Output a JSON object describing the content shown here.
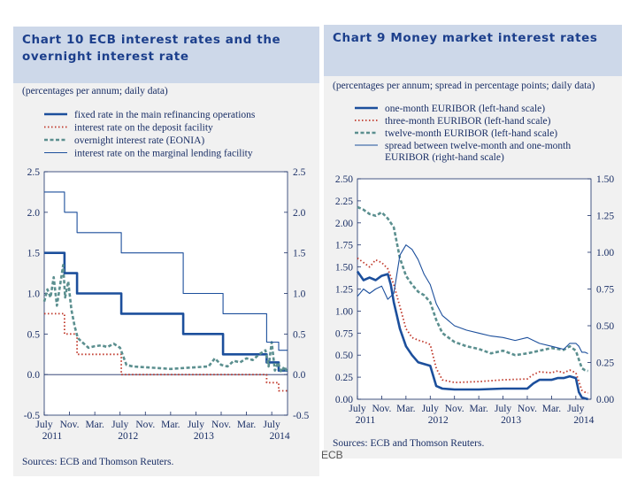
{
  "footer_label": "ECB",
  "chart_data": [
    {
      "id": "chart10",
      "type": "line",
      "title": "Chart 10 ECB interest rates and the overnight interest rate",
      "subtitle": "(percentages per annum; daily data)",
      "source": "Sources: ECB and Thomson Reuters.",
      "x_ticks": [
        {
          "t": 0,
          "label": "July",
          "year": "2011"
        },
        {
          "t": 4,
          "label": "Nov."
        },
        {
          "t": 8,
          "label": "Mar."
        },
        {
          "t": 12,
          "label": "July",
          "year": "2012"
        },
        {
          "t": 16,
          "label": "Nov."
        },
        {
          "t": 20,
          "label": "Mar."
        },
        {
          "t": 24,
          "label": "July",
          "year": "2013"
        },
        {
          "t": 28,
          "label": "Nov."
        },
        {
          "t": 32,
          "label": "Mar."
        },
        {
          "t": 36,
          "label": "July",
          "year": "2014"
        }
      ],
      "xlim": [
        0,
        38.5
      ],
      "ylim": [
        -0.5,
        2.5
      ],
      "yticks": [
        -0.5,
        0.0,
        0.5,
        1.0,
        1.5,
        2.0,
        2.5
      ],
      "ytick_labels": [
        "-0.5",
        "0.0",
        "0.5",
        "1.0",
        "1.5",
        "2.0",
        "2.5"
      ],
      "right_axis": {
        "ylim": [
          -0.5,
          2.5
        ],
        "yticks": [
          -0.5,
          0.0,
          0.5,
          1.0,
          1.5,
          2.0,
          2.5
        ],
        "ytick_labels": [
          "-0.5",
          "0.0",
          "0.5",
          "1.0",
          "1.5",
          "2.0",
          "2.5"
        ]
      },
      "zero_line": true,
      "series": [
        {
          "name": "fixed rate in the main refinancing operations",
          "style": "thick",
          "color": "#1c4f9c",
          "x": [
            0,
            3.2,
            3.2,
            5.2,
            5.2,
            12.2,
            12.2,
            22,
            22,
            28.3,
            28.3,
            35.2,
            35.2,
            37.1,
            37.1,
            38.5
          ],
          "y": [
            1.5,
            1.5,
            1.25,
            1.25,
            1.0,
            1.0,
            0.75,
            0.75,
            0.5,
            0.5,
            0.25,
            0.25,
            0.15,
            0.15,
            0.05,
            0.05
          ]
        },
        {
          "name": "interest rate on the deposit facility",
          "style": "dotted",
          "color": "#c0392b",
          "x": [
            0,
            3.2,
            3.2,
            5.2,
            5.2,
            12.2,
            12.2,
            35.2,
            35.2,
            37.1,
            37.1,
            38.5
          ],
          "y": [
            0.75,
            0.75,
            0.5,
            0.5,
            0.25,
            0.25,
            0.0,
            0.0,
            -0.1,
            -0.1,
            -0.2,
            -0.2
          ]
        },
        {
          "name": "overnight interest rate (EONIA)",
          "style": "dashed",
          "color": "#5b8f8f",
          "x": [
            0,
            0.5,
            1,
            1.5,
            2,
            2.5,
            3,
            3.3,
            3.8,
            4.3,
            4.8,
            5.3,
            6,
            7,
            8,
            9,
            10,
            11,
            12,
            13,
            14,
            16,
            18,
            20,
            22,
            24,
            26,
            27,
            28,
            29,
            30,
            31,
            32,
            33,
            34,
            35,
            35.5,
            36,
            36.5,
            37,
            37.5,
            38,
            38.5
          ],
          "y": [
            0.9,
            1.05,
            0.95,
            1.2,
            0.85,
            1.1,
            1.35,
            0.95,
            1.15,
            0.8,
            0.6,
            0.45,
            0.4,
            0.33,
            0.35,
            0.36,
            0.34,
            0.38,
            0.33,
            0.12,
            0.1,
            0.09,
            0.08,
            0.07,
            0.08,
            0.09,
            0.1,
            0.2,
            0.12,
            0.1,
            0.17,
            0.15,
            0.2,
            0.18,
            0.25,
            0.3,
            0.1,
            0.4,
            0.05,
            0.15,
            0.03,
            0.1,
            0.02
          ]
        },
        {
          "name": "interest rate on the marginal lending facility",
          "style": "thin",
          "color": "#1c4f9c",
          "x": [
            0,
            3.2,
            3.2,
            5.2,
            5.2,
            12.2,
            12.2,
            22,
            22,
            28.3,
            28.3,
            35.2,
            35.2,
            37.1,
            37.1,
            38.5
          ],
          "y": [
            2.25,
            2.25,
            2.0,
            2.0,
            1.75,
            1.75,
            1.5,
            1.5,
            1.0,
            1.0,
            0.75,
            0.75,
            0.4,
            0.4,
            0.3,
            0.3
          ]
        }
      ]
    },
    {
      "id": "chart9",
      "type": "line",
      "title": "Chart 9 Money market interest rates",
      "subtitle": "(percentages per annum; spread in percentage points; daily data)",
      "source": "Sources: ECB and Thomson Reuters.",
      "x_ticks": [
        {
          "t": 0,
          "label": "July",
          "year": "2011"
        },
        {
          "t": 4,
          "label": "Nov."
        },
        {
          "t": 8,
          "label": "Mar."
        },
        {
          "t": 12,
          "label": "July",
          "year": "2012"
        },
        {
          "t": 16,
          "label": "Nov."
        },
        {
          "t": 20,
          "label": "Mar."
        },
        {
          "t": 24,
          "label": "July",
          "year": "2013"
        },
        {
          "t": 28,
          "label": "Nov."
        },
        {
          "t": 32,
          "label": "Mar."
        },
        {
          "t": 36,
          "label": "July",
          "year": "2014"
        }
      ],
      "xlim": [
        0,
        38.5
      ],
      "ylim": [
        0.0,
        2.5
      ],
      "yticks": [
        0.0,
        0.25,
        0.5,
        0.75,
        1.0,
        1.25,
        1.5,
        1.75,
        2.0,
        2.25,
        2.5
      ],
      "ytick_labels": [
        "0.00",
        "0.25",
        "0.50",
        "0.75",
        "1.00",
        "1.25",
        "1.50",
        "1.75",
        "2.00",
        "2.25",
        "2.50"
      ],
      "right_axis": {
        "ylim": [
          0.0,
          1.5
        ],
        "yticks": [
          0.0,
          0.25,
          0.5,
          0.75,
          1.0,
          1.25,
          1.5
        ],
        "ytick_labels": [
          "0.00",
          "0.25",
          "0.50",
          "0.75",
          "1.00",
          "1.25",
          "1.50"
        ]
      },
      "zero_line": false,
      "series": [
        {
          "name": "one-month EURIBOR (left-hand scale)",
          "style": "thick",
          "color": "#1c4f9c",
          "axis": "left",
          "x": [
            0,
            1,
            2,
            3,
            4,
            5,
            5.5,
            6,
            6.5,
            7,
            8,
            9,
            10,
            11,
            12,
            13,
            14,
            16,
            20,
            24,
            28,
            29,
            30,
            32,
            33,
            34,
            35,
            36,
            36.5,
            37,
            37.5,
            38
          ],
          "y": [
            1.45,
            1.35,
            1.38,
            1.35,
            1.4,
            1.42,
            1.3,
            1.1,
            0.95,
            0.8,
            0.6,
            0.5,
            0.42,
            0.4,
            0.38,
            0.15,
            0.12,
            0.11,
            0.11,
            0.12,
            0.12,
            0.18,
            0.22,
            0.22,
            0.24,
            0.24,
            0.26,
            0.24,
            0.08,
            0.02,
            0.01,
            0.0
          ]
        },
        {
          "name": "three-month EURIBOR (left-hand scale)",
          "style": "dotted",
          "color": "#c0392b",
          "axis": "left",
          "x": [
            0,
            1,
            2,
            3,
            4,
            5,
            6,
            7,
            8,
            9,
            10,
            11,
            12,
            13,
            14,
            16,
            20,
            24,
            28,
            29,
            30,
            32,
            33,
            34,
            35,
            36,
            36.5,
            37,
            37.5,
            38
          ],
          "y": [
            1.6,
            1.55,
            1.5,
            1.58,
            1.55,
            1.48,
            1.3,
            1.05,
            0.8,
            0.7,
            0.67,
            0.65,
            0.62,
            0.35,
            0.22,
            0.19,
            0.2,
            0.22,
            0.23,
            0.28,
            0.31,
            0.3,
            0.32,
            0.3,
            0.33,
            0.3,
            0.2,
            0.1,
            0.08,
            0.07
          ]
        },
        {
          "name": "twelve-month EURIBOR (left-hand scale)",
          "style": "dashed",
          "color": "#5b8f8f",
          "axis": "left",
          "x": [
            0,
            1,
            2,
            3,
            4,
            5,
            6,
            7,
            8,
            9,
            10,
            11,
            12,
            13,
            14,
            16,
            18,
            20,
            22,
            24,
            26,
            28,
            30,
            32,
            34,
            35,
            36,
            36.5,
            37,
            37.5,
            38
          ],
          "y": [
            2.18,
            2.15,
            2.1,
            2.08,
            2.12,
            2.05,
            1.95,
            1.6,
            1.4,
            1.3,
            1.22,
            1.18,
            1.1,
            0.9,
            0.75,
            0.65,
            0.6,
            0.57,
            0.52,
            0.55,
            0.5,
            0.52,
            0.55,
            0.58,
            0.56,
            0.6,
            0.55,
            0.45,
            0.35,
            0.33,
            0.32
          ]
        },
        {
          "name": "spread between twelve-month and one-month EURIBOR (right-hand scale)",
          "style": "thin",
          "color": "#1c4f9c",
          "axis": "right",
          "x": [
            0,
            1,
            2,
            3,
            4,
            5,
            6,
            7,
            8,
            9,
            10,
            11,
            12,
            13,
            14,
            16,
            18,
            20,
            22,
            24,
            26,
            28,
            30,
            32,
            34,
            35,
            36,
            36.5,
            37,
            37.5,
            38
          ],
          "y": [
            0.7,
            0.75,
            0.72,
            0.75,
            0.77,
            0.68,
            0.72,
            0.98,
            1.05,
            1.02,
            0.95,
            0.85,
            0.78,
            0.65,
            0.57,
            0.5,
            0.47,
            0.45,
            0.43,
            0.42,
            0.4,
            0.42,
            0.38,
            0.36,
            0.34,
            0.38,
            0.38,
            0.36,
            0.32,
            0.32,
            0.31
          ]
        }
      ]
    }
  ]
}
